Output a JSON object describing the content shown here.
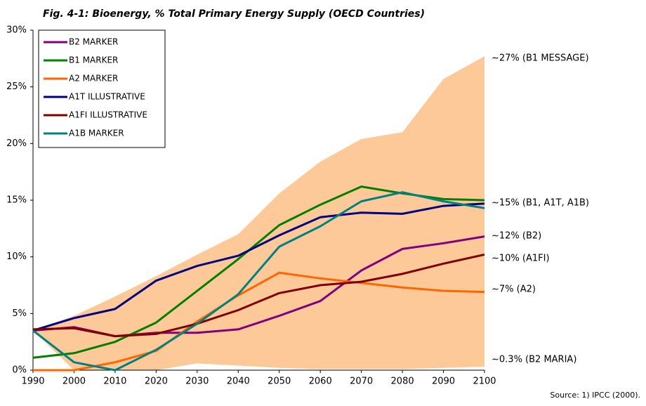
{
  "chart_data": {
    "type": "line",
    "title": "Fig. 4-1: Bioenergy, % Total Primary Energy Supply (OECD Countries)",
    "x": [
      1990,
      2000,
      2010,
      2020,
      2030,
      2040,
      2050,
      2060,
      2070,
      2080,
      2090,
      2100
    ],
    "xlim": [
      1990,
      2100
    ],
    "xticks": [
      1990,
      2000,
      2010,
      2020,
      2030,
      2040,
      2050,
      2060,
      2070,
      2080,
      2090,
      2100
    ],
    "ylim": [
      0,
      30
    ],
    "yticks": [
      {
        "value": 0,
        "label": "0%"
      },
      {
        "value": 5,
        "label": "5%"
      },
      {
        "value": 10,
        "label": "10%"
      },
      {
        "value": 15,
        "label": "15%"
      },
      {
        "value": 20,
        "label": "20%"
      },
      {
        "value": 25,
        "label": "25%"
      },
      {
        "value": 30,
        "label": "30%"
      }
    ],
    "band": {
      "color": "#fdc998",
      "upper": [
        3.5,
        4.8,
        6.5,
        8.3,
        10.2,
        12,
        15.6,
        18.4,
        20.4,
        21,
        25.7,
        27.7
      ],
      "lower": [
        3.5,
        0,
        0,
        0,
        0.6,
        0.4,
        0.2,
        0.1,
        0.1,
        0.1,
        0.2,
        0.3
      ]
    },
    "series": [
      {
        "name": "B2 MARKER",
        "color": "#800080",
        "values": [
          3.5,
          3.8,
          3.0,
          3.3,
          3.3,
          3.6,
          4.8,
          6.1,
          8.8,
          10.7,
          11.2,
          11.8
        ]
      },
      {
        "name": "B1 MARKER",
        "color": "#008000",
        "values": [
          1.1,
          1.5,
          2.5,
          4.2,
          7.0,
          9.8,
          12.8,
          14.6,
          16.2,
          15.6,
          15.1,
          15.0
        ]
      },
      {
        "name": "A2 MARKER",
        "color": "#ff6600",
        "values": [
          0,
          0,
          0.7,
          1.7,
          4.3,
          6.6,
          8.6,
          8.1,
          7.7,
          7.3,
          7.0,
          6.9
        ]
      },
      {
        "name": "A1T ILLUSTRATIVE",
        "color": "#000080",
        "values": [
          3.5,
          4.6,
          5.4,
          7.9,
          9.2,
          10.1,
          11.9,
          13.5,
          13.9,
          13.8,
          14.5,
          14.7
        ]
      },
      {
        "name": "A1FI ILLUSTRATIVE",
        "color": "#800000",
        "values": [
          3.6,
          3.7,
          3.0,
          3.2,
          4.1,
          5.3,
          6.8,
          7.5,
          7.8,
          8.5,
          9.4,
          10.2
        ]
      },
      {
        "name": "A1B MARKER",
        "color": "#008080",
        "values": [
          3.5,
          0.7,
          0,
          1.8,
          4.1,
          6.7,
          10.9,
          12.7,
          14.9,
          15.7,
          14.9,
          14.3
        ]
      }
    ],
    "annotations": [
      "~27% (B1 MESSAGE)",
      "~15% (B1, A1T, A1B)",
      "~12% (B2)",
      "~10% (A1FI)",
      "~7% (A2)",
      "~0.3% (B2 MARIA)"
    ],
    "source": "Source: 1) IPCC (2000)."
  }
}
